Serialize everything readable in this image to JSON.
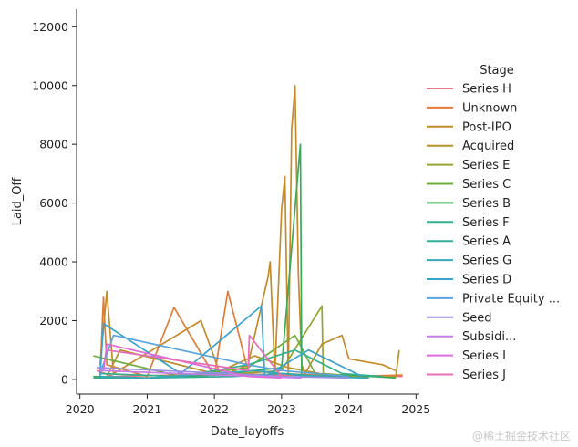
{
  "chart_data": {
    "type": "line",
    "xlabel": "Date_layoffs",
    "ylabel": "Laid_Off",
    "xlim": [
      2019.95,
      2025.05
    ],
    "ylim": [
      -500,
      12600
    ],
    "x_ticks": [
      2020,
      2021,
      2022,
      2023,
      2024,
      2025
    ],
    "y_ticks": [
      0,
      2000,
      4000,
      6000,
      8000,
      10000,
      12000
    ],
    "grid": false,
    "legend": {
      "title": "Stage",
      "placement": "right"
    },
    "series": [
      {
        "name": "Series H",
        "color": "#e8748a",
        "x": [
          2020.25,
          2020.5,
          2022.3,
          2023.0,
          2024.8
        ],
        "y": [
          300,
          100,
          200,
          150,
          100
        ]
      },
      {
        "name": "Unknown",
        "color": "#e07b39",
        "x": [
          2020.3,
          2020.35,
          2020.4,
          2021.0,
          2021.4,
          2021.9,
          2022.0,
          2022.2,
          2022.5,
          2023.0,
          2023.5,
          2024.0,
          2024.8
        ],
        "y": [
          200,
          2800,
          500,
          100,
          2450,
          500,
          100,
          3000,
          300,
          200,
          150,
          100,
          150
        ]
      },
      {
        "name": "Post-IPO",
        "color": "#c58a2c",
        "x": [
          2020.3,
          2020.4,
          2020.5,
          2021.8,
          2022.1,
          2022.5,
          2022.8,
          2022.83,
          2022.9,
          2023.0,
          2023.05,
          2023.1,
          2023.15,
          2023.2,
          2023.25,
          2023.3,
          2023.35,
          2023.6,
          2023.9,
          2024.0,
          2024.5,
          2024.7
        ],
        "y": [
          500,
          3000,
          200,
          2000,
          100,
          500,
          3500,
          4000,
          200,
          5800,
          6900,
          100,
          8500,
          10000,
          3600,
          500,
          200,
          1200,
          1500,
          700,
          500,
          300
        ]
      },
      {
        "name": "Acquired",
        "color": "#b8902c",
        "x": [
          2020.4,
          2020.6,
          2022.0,
          2022.6,
          2023.1,
          2023.8,
          2024.7,
          2024.75
        ],
        "y": [
          100,
          1000,
          200,
          800,
          400,
          100,
          100,
          1000
        ]
      },
      {
        "name": "Series E",
        "color": "#97a332",
        "x": [
          2020.3,
          2021.0,
          2022.4,
          2023.0,
          2023.6,
          2023.62,
          2024.2
        ],
        "y": [
          100,
          50,
          200,
          300,
          2500,
          200,
          100
        ]
      },
      {
        "name": "Series C",
        "color": "#6ead3a",
        "x": [
          2020.2,
          2021.5,
          2022.5,
          2023.2,
          2023.5,
          2024.0
        ],
        "y": [
          800,
          100,
          400,
          1500,
          200,
          100
        ]
      },
      {
        "name": "Series B",
        "color": "#3aaa57",
        "x": [
          2020.2,
          2021.0,
          2022.0,
          2023.0,
          2023.28,
          2023.3,
          2024.0,
          2024.7
        ],
        "y": [
          100,
          50,
          150,
          400,
          8000,
          100,
          150,
          50
        ]
      },
      {
        "name": "Series F",
        "color": "#33b08d",
        "x": [
          2020.3,
          2021.5,
          2022.5,
          2023.2,
          2023.9,
          2024.5
        ],
        "y": [
          200,
          100,
          500,
          1000,
          200,
          100
        ]
      },
      {
        "name": "Series A",
        "color": "#35ab9e",
        "x": [
          2020.2,
          2021.0,
          2022.3,
          2023.0,
          2024.0
        ],
        "y": [
          50,
          50,
          100,
          200,
          50
        ]
      },
      {
        "name": "Series G",
        "color": "#37a8b6",
        "x": [
          2020.3,
          2021.0,
          2022.6,
          2023.4,
          2024.3
        ],
        "y": [
          100,
          50,
          300,
          100,
          50
        ]
      },
      {
        "name": "Series D",
        "color": "#39a3cb",
        "x": [
          2020.3,
          2020.35,
          2021.5,
          2022.7,
          2022.75,
          2023.4,
          2024.2
        ],
        "y": [
          100,
          1900,
          200,
          2500,
          100,
          1000,
          100
        ]
      },
      {
        "name": "Private Equity ...",
        "color": "#5aa3e0",
        "x": [
          2020.3,
          2020.5,
          2022.5,
          2023.0,
          2024.0
        ],
        "y": [
          200,
          1500,
          500,
          300,
          100
        ]
      },
      {
        "name": "Seed",
        "color": "#9a8ee0",
        "x": [
          2020.25,
          2021.2,
          2022.2,
          2023.0,
          2024.0
        ],
        "y": [
          400,
          300,
          200,
          100,
          50
        ]
      },
      {
        "name": "Subsidi...",
        "color": "#c77ee6",
        "x": [
          2020.3,
          2021.5,
          2022.6,
          2023.3
        ],
        "y": [
          300,
          200,
          100,
          50
        ]
      },
      {
        "name": "Series I",
        "color": "#dd6bd9",
        "x": [
          2020.35,
          2020.4,
          2022.5,
          2023.0
        ],
        "y": [
          300,
          1200,
          100,
          50
        ]
      },
      {
        "name": "Series J",
        "color": "#e56fb9",
        "x": [
          2020.4,
          2022.5,
          2022.52,
          2023.0
        ],
        "y": [
          1000,
          300,
          1500,
          100
        ]
      }
    ]
  },
  "watermark": "@稀土掘金技术社区"
}
